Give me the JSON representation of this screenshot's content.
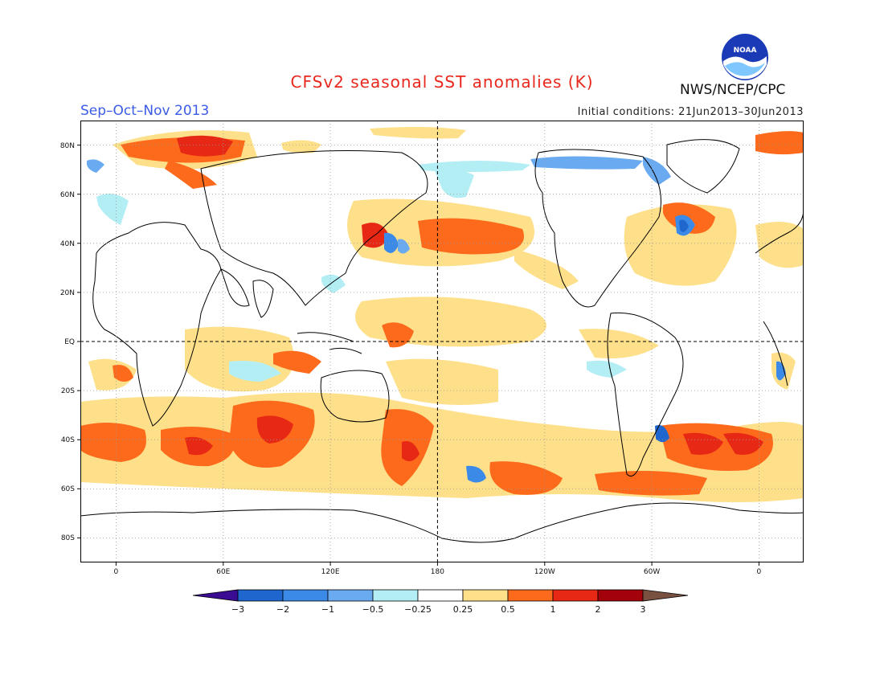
{
  "header": {
    "title": "CFSv2 seasonal SST anomalies (K)",
    "season": "Sep–Oct–Nov 2013",
    "initial_conditions": "Initial conditions: 21Jun2013–30Jun2013",
    "agency": "NWS/NCEP/CPC",
    "logo_icon": "noaa-logo-icon",
    "title_color": "#e8281e",
    "season_color": "#3c5ce6"
  },
  "map": {
    "lat_labels": [
      "80N",
      "60N",
      "40N",
      "20N",
      "EQ",
      "20S",
      "40S",
      "60S",
      "80S"
    ],
    "lon_labels": [
      "0",
      "60E",
      "120E",
      "180",
      "120W",
      "60W",
      "0"
    ],
    "projection": "cylindrical equidistant",
    "grid": "dotted every 20°",
    "dashed_reference_lines": [
      "EQ",
      "180"
    ]
  },
  "legend": {
    "tick_labels": [
      "−3",
      "−2",
      "−1",
      "−0.5",
      "−0.25",
      "0.25",
      "0.5",
      "1",
      "2",
      "3"
    ],
    "colors": [
      "#3a0b93",
      "#1f66cf",
      "#3c8ae8",
      "#6aaaf0",
      "#b4eef5",
      "#ffffff",
      "#fee08a",
      "#fe6a1c",
      "#e62814",
      "#a4020a",
      "#7a5040"
    ]
  }
}
